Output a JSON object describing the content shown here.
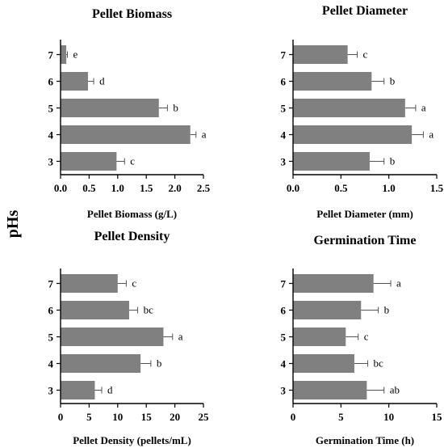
{
  "shared_ylabel": "pHs",
  "chart_data": [
    {
      "type": "bar",
      "orientation": "horizontal",
      "title": "Pellet Biomass",
      "xlabel": "Pellet Biomass (g/L)",
      "ylabel": "pHs",
      "categories": [
        "7",
        "6",
        "5",
        "4",
        "3"
      ],
      "values": [
        0.1,
        0.48,
        1.72,
        2.27,
        0.98
      ],
      "errors": [
        0.02,
        0.1,
        0.15,
        0.1,
        0.14
      ],
      "significance": [
        "e",
        "d",
        "b",
        "a",
        "c"
      ],
      "xlim": [
        0,
        2.5
      ],
      "xticks": [
        "0.0",
        "0.5",
        "1.0",
        "1.5",
        "2.0",
        "2.5"
      ],
      "bar_color": "#808080"
    },
    {
      "type": "bar",
      "orientation": "horizontal",
      "title": "Pellet Diameter",
      "xlabel": "Pellet Diameter (mm)",
      "ylabel": "pHs",
      "categories": [
        "7",
        "6",
        "5",
        "4",
        "3"
      ],
      "values": [
        0.57,
        0.82,
        1.17,
        1.24,
        0.8
      ],
      "errors": [
        0.1,
        0.13,
        0.11,
        0.12,
        0.15
      ],
      "significance": [
        "c",
        "b",
        "a",
        "a",
        "b"
      ],
      "xlim": [
        0,
        1.5
      ],
      "xticks": [
        "0.0",
        "0.5",
        "1.0",
        "1.5"
      ],
      "bar_color": "#808080"
    },
    {
      "type": "bar",
      "orientation": "horizontal",
      "title": "Pellet Density",
      "xlabel": "Pellet Density (pellets/mL)",
      "ylabel": "pHs",
      "categories": [
        "7",
        "6",
        "5",
        "4",
        "3"
      ],
      "values": [
        10,
        12,
        18,
        14,
        6
      ],
      "errors": [
        1.5,
        1.5,
        1.6,
        1.8,
        1.2
      ],
      "significance": [
        "c",
        "bc",
        "a",
        "b",
        "d"
      ],
      "xlim": [
        0,
        25
      ],
      "xticks": [
        "0",
        "5",
        "10",
        "15",
        "20",
        "25"
      ],
      "bar_color": "#808080"
    },
    {
      "type": "bar",
      "orientation": "horizontal",
      "title": "Germination Time",
      "xlabel": "Germination Time (h)",
      "ylabel": "pHs",
      "categories": [
        "7",
        "6",
        "5",
        "4",
        "3"
      ],
      "values": [
        8.4,
        7.1,
        5.5,
        6.4,
        7.7
      ],
      "errors": [
        1.8,
        1.8,
        1.3,
        1.4,
        1.8
      ],
      "significance": [
        "a",
        "b",
        "c",
        "bc",
        "ab"
      ],
      "xlim": [
        0,
        15
      ],
      "xticks": [
        "0",
        "5",
        "10",
        "15"
      ],
      "bar_color": "#808080"
    }
  ]
}
